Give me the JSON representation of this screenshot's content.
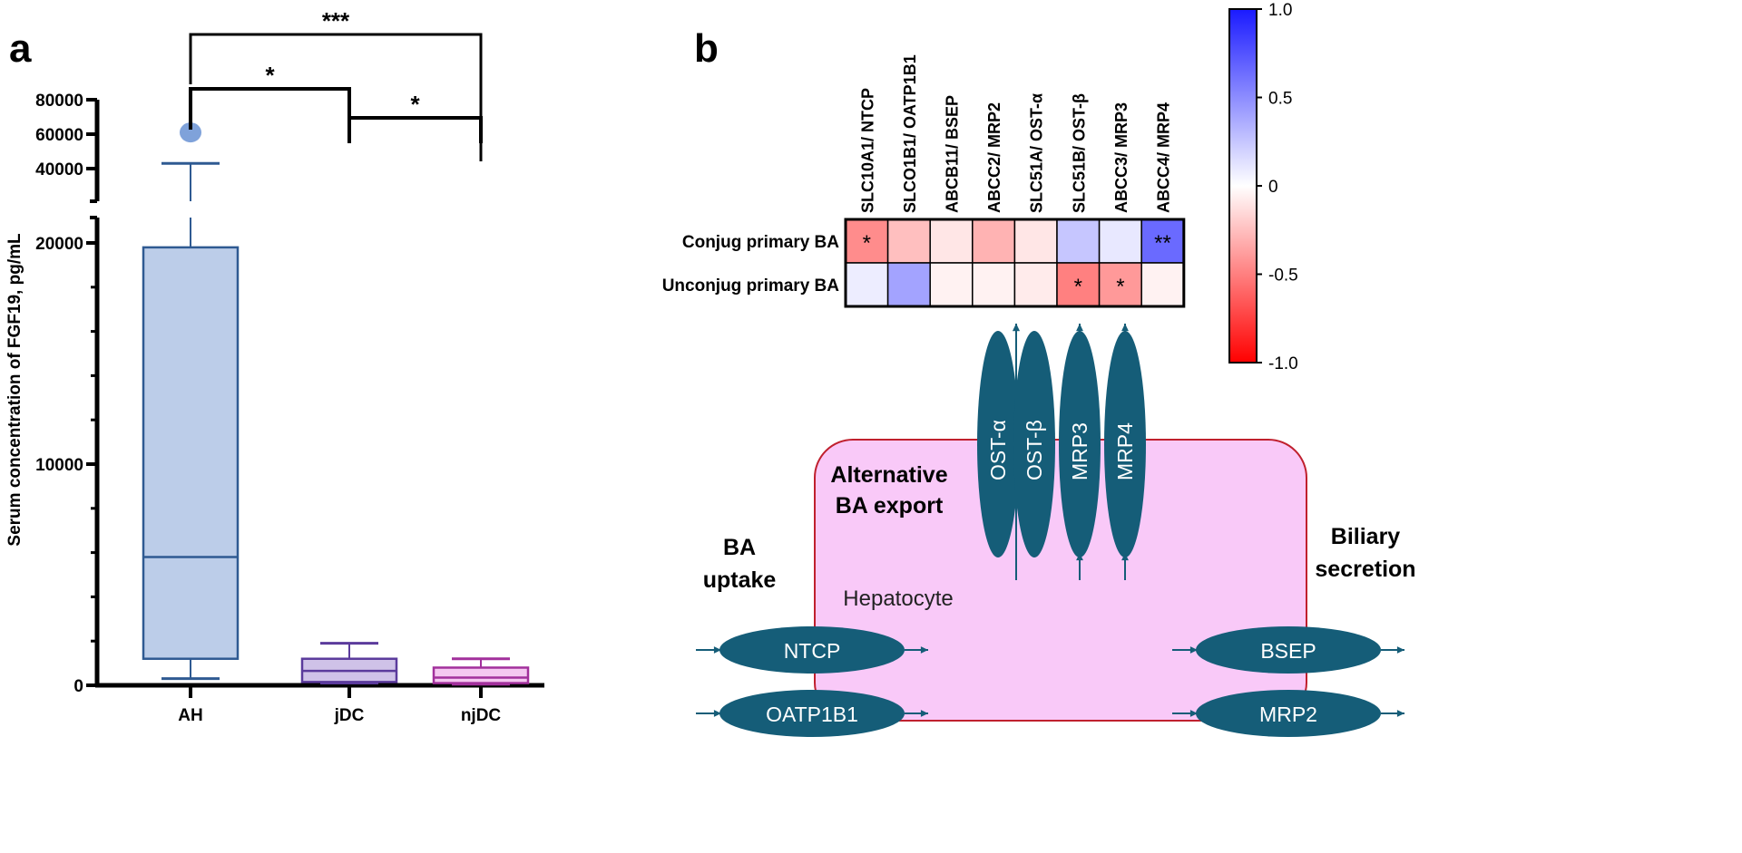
{
  "panels": {
    "a": "a",
    "b": "b"
  },
  "chart_data": [
    {
      "type": "box",
      "ylabel": "Serum concentration of FGF19, pg/mL",
      "categories": [
        "AH",
        "jDC",
        "njDC"
      ],
      "y_axis_break": [
        25000,
        30000
      ],
      "y_ticks_lower": [
        0,
        10000,
        20000
      ],
      "y_ticks_upper": [
        40000,
        60000,
        80000
      ],
      "ylim": [
        0,
        80000
      ],
      "boxes": [
        {
          "name": "AH",
          "min": 300,
          "q1": 1200,
          "median": 5800,
          "q3": 19800,
          "max": 43000,
          "outliers": [
            61000
          ],
          "fill": "#bccde9",
          "stroke": "#2f5a92",
          "outlier_color": "#7fa2da"
        },
        {
          "name": "jDC",
          "min": 100,
          "q1": 150,
          "median": 650,
          "q3": 1200,
          "max": 1900,
          "outliers": [],
          "fill": "#cfc2e8",
          "stroke": "#5b3b9c"
        },
        {
          "name": "njDC",
          "min": 50,
          "q1": 100,
          "median": 350,
          "q3": 800,
          "max": 1200,
          "outliers": [],
          "fill": "#f4c8f0",
          "stroke": "#a2309c"
        }
      ],
      "significance": [
        {
          "from": "AH",
          "to": "njDC",
          "label": "***"
        },
        {
          "from": "AH",
          "to": "jDC",
          "label": "*"
        },
        {
          "from": "jDC",
          "to": "njDC",
          "label": "*"
        }
      ]
    },
    {
      "type": "heatmap",
      "columns": [
        "SLC10A1/ NTCP",
        "SLCO1B1/ OATP1B1",
        "ABCB11/ BSEP",
        "ABCC2/ MRP2",
        "SLC51A/ OST-α",
        "SLC51B/ OST-β",
        "ABCC3/ MRP3",
        "ABCC4/ MRP4"
      ],
      "rows": [
        "Conjug primary BA",
        "Unconjug primary BA"
      ],
      "values": [
        [
          -0.45,
          -0.25,
          -0.1,
          -0.3,
          -0.1,
          0.25,
          0.1,
          0.65
        ],
        [
          0.08,
          0.4,
          -0.05,
          -0.05,
          -0.08,
          -0.5,
          -0.4,
          -0.05
        ]
      ],
      "annotations": [
        [
          "*",
          "",
          "",
          "",
          "",
          "",
          "",
          "**"
        ],
        [
          "",
          "",
          "",
          "",
          "",
          "*",
          "*",
          ""
        ]
      ],
      "colorbar": {
        "range": [
          -1.0,
          1.0
        ],
        "ticks": [
          "1.0",
          "0.5",
          "0",
          "-0.5",
          "-1.0"
        ],
        "high_color": "#1a1aff",
        "mid_color": "#ffffff",
        "low_color": "#ff0000"
      }
    }
  ],
  "diagram": {
    "cell_label": "Hepatocyte",
    "groups": {
      "uptake": [
        "BA",
        "uptake"
      ],
      "alt_export": [
        "Alternative",
        "BA export"
      ],
      "biliary": [
        "Biliary",
        "secretion"
      ]
    },
    "transporters": {
      "ntcp": "NTCP",
      "oatp": "OATP1B1",
      "bsep": "BSEP",
      "mrp2": "MRP2",
      "osta": "OST-α",
      "ostb": "OST-β",
      "mrp3": "MRP3",
      "mrp4": "MRP4"
    },
    "colors": {
      "transporter": "#155d78",
      "cell_fill": "#f9c9f8",
      "cell_border": "#c0202e"
    }
  }
}
